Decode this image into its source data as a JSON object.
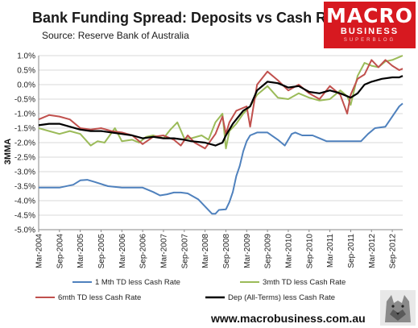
{
  "header": {
    "title": "Bank Funding Spread: Deposits vs Cash Rate",
    "subtitle": "Source: Reserve Bank of Australia"
  },
  "brand": {
    "logo_main": "MACRO",
    "logo_sub": "BUSINESS",
    "logo_sub2": "SUPERBLOG",
    "website": "www.macrobusiness.com.au",
    "logo_color": "#d71920",
    "emblem": "wolf-emblem"
  },
  "chart_data": {
    "type": "line",
    "ylabel": "3MMA",
    "ylim": [
      -5.0,
      1.0
    ],
    "yticks": [
      "1.0%",
      "0.5%",
      "0.0%",
      "-0.5%",
      "-1.0%",
      "-1.5%",
      "-2.0%",
      "-2.5%",
      "-3.0%",
      "-3.5%",
      "-4.0%",
      "-4.5%",
      "-5.0%"
    ],
    "xticks": [
      "Mar-2004",
      "Sep-2004",
      "Mar-2005",
      "Sep-2005",
      "Mar-2006",
      "Sep-2006",
      "Mar-2007",
      "Sep-2007",
      "Mar-2008",
      "Sep-2008",
      "Mar-2009",
      "Sep-2009",
      "Mar-2010",
      "Sep-2010",
      "Mar-2011",
      "Sep-2011",
      "Mar-2012",
      "Sep-2012"
    ],
    "xrange": [
      "2004-03",
      "2012-12"
    ],
    "grid": true,
    "legend": "bottom",
    "series": [
      {
        "name": "1 Mth TD less Cash Rate",
        "color": "#4f81bd",
        "points": [
          [
            "2004-03",
            -3.55
          ],
          [
            "2004-09",
            -3.55
          ],
          [
            "2005-01",
            -3.45
          ],
          [
            "2005-03",
            -3.3
          ],
          [
            "2005-05",
            -3.28
          ],
          [
            "2005-07",
            -3.35
          ],
          [
            "2005-11",
            -3.5
          ],
          [
            "2006-03",
            -3.55
          ],
          [
            "2006-09",
            -3.55
          ],
          [
            "2006-12",
            -3.7
          ],
          [
            "2007-02",
            -3.82
          ],
          [
            "2007-04",
            -3.78
          ],
          [
            "2007-06",
            -3.72
          ],
          [
            "2007-08",
            -3.72
          ],
          [
            "2007-10",
            -3.75
          ],
          [
            "2008-01",
            -3.95
          ],
          [
            "2008-03",
            -4.2
          ],
          [
            "2008-05",
            -4.45
          ],
          [
            "2008-06",
            -4.45
          ],
          [
            "2008-07",
            -4.32
          ],
          [
            "2008-09",
            -4.3
          ],
          [
            "2008-10",
            -4.05
          ],
          [
            "2008-11",
            -3.7
          ],
          [
            "2008-12",
            -3.15
          ],
          [
            "2009-01",
            -2.8
          ],
          [
            "2009-02",
            -2.3
          ],
          [
            "2009-03",
            -1.95
          ],
          [
            "2009-04",
            -1.75
          ],
          [
            "2009-06",
            -1.65
          ],
          [
            "2009-09",
            -1.65
          ],
          [
            "2009-12",
            -1.9
          ],
          [
            "2010-02",
            -2.1
          ],
          [
            "2010-04",
            -1.7
          ],
          [
            "2010-05",
            -1.65
          ],
          [
            "2010-07",
            -1.75
          ],
          [
            "2010-10",
            -1.75
          ],
          [
            "2010-12",
            -1.85
          ],
          [
            "2011-02",
            -1.95
          ],
          [
            "2011-06",
            -1.95
          ],
          [
            "2011-10",
            -1.95
          ],
          [
            "2011-12",
            -1.95
          ],
          [
            "2012-02",
            -1.7
          ],
          [
            "2012-04",
            -1.5
          ],
          [
            "2012-07",
            -1.45
          ],
          [
            "2012-09",
            -1.1
          ],
          [
            "2012-11",
            -0.75
          ],
          [
            "2012-12",
            -0.65
          ]
        ]
      },
      {
        "name": "3mth TD less Cash Rate",
        "color": "#9bbb59",
        "points": [
          [
            "2004-03",
            -1.5
          ],
          [
            "2004-06",
            -1.6
          ],
          [
            "2004-09",
            -1.7
          ],
          [
            "2004-12",
            -1.6
          ],
          [
            "2005-03",
            -1.7
          ],
          [
            "2005-06",
            -2.1
          ],
          [
            "2005-08",
            -1.95
          ],
          [
            "2005-10",
            -2.0
          ],
          [
            "2006-01",
            -1.5
          ],
          [
            "2006-03",
            -1.95
          ],
          [
            "2006-06",
            -1.9
          ],
          [
            "2006-08",
            -2.0
          ],
          [
            "2006-10",
            -1.8
          ],
          [
            "2006-12",
            -1.75
          ],
          [
            "2007-03",
            -1.85
          ],
          [
            "2007-05",
            -1.55
          ],
          [
            "2007-07",
            -1.3
          ],
          [
            "2007-09",
            -1.85
          ],
          [
            "2007-11",
            -1.85
          ],
          [
            "2008-02",
            -1.75
          ],
          [
            "2008-04",
            -1.9
          ],
          [
            "2008-06",
            -1.3
          ],
          [
            "2008-08",
            -1.0
          ],
          [
            "2008-09",
            -2.2
          ],
          [
            "2008-10",
            -1.6
          ],
          [
            "2008-12",
            -1.35
          ],
          [
            "2009-02",
            -1.0
          ],
          [
            "2009-04",
            -0.75
          ],
          [
            "2009-06",
            -0.35
          ],
          [
            "2009-09",
            -0.05
          ],
          [
            "2009-12",
            -0.45
          ],
          [
            "2010-03",
            -0.5
          ],
          [
            "2010-06",
            -0.3
          ],
          [
            "2010-09",
            -0.45
          ],
          [
            "2010-12",
            -0.55
          ],
          [
            "2011-03",
            -0.5
          ],
          [
            "2011-06",
            -0.2
          ],
          [
            "2011-08",
            -0.4
          ],
          [
            "2011-09",
            -0.7
          ],
          [
            "2011-11",
            0.3
          ],
          [
            "2012-01",
            0.75
          ],
          [
            "2012-03",
            0.65
          ],
          [
            "2012-05",
            0.6
          ],
          [
            "2012-07",
            0.8
          ],
          [
            "2012-09",
            0.85
          ],
          [
            "2012-11",
            0.95
          ],
          [
            "2012-12",
            1.0
          ]
        ]
      },
      {
        "name": "6mth TD less Cash Rate",
        "color": "#c0504d",
        "points": [
          [
            "2004-03",
            -1.2
          ],
          [
            "2004-06",
            -1.05
          ],
          [
            "2004-09",
            -1.1
          ],
          [
            "2004-12",
            -1.2
          ],
          [
            "2005-03",
            -1.5
          ],
          [
            "2005-06",
            -1.55
          ],
          [
            "2005-09",
            -1.5
          ],
          [
            "2005-12",
            -1.6
          ],
          [
            "2006-03",
            -1.65
          ],
          [
            "2006-06",
            -1.75
          ],
          [
            "2006-09",
            -2.05
          ],
          [
            "2006-12",
            -1.8
          ],
          [
            "2007-03",
            -1.75
          ],
          [
            "2007-06",
            -1.9
          ],
          [
            "2007-08",
            -2.1
          ],
          [
            "2007-10",
            -1.75
          ],
          [
            "2007-12",
            -2.0
          ],
          [
            "2008-03",
            -2.2
          ],
          [
            "2008-06",
            -1.7
          ],
          [
            "2008-08",
            -1.1
          ],
          [
            "2008-09",
            -1.7
          ],
          [
            "2008-10",
            -1.3
          ],
          [
            "2008-12",
            -0.9
          ],
          [
            "2009-03",
            -0.75
          ],
          [
            "2009-04",
            -1.45
          ],
          [
            "2009-06",
            0.0
          ],
          [
            "2009-09",
            0.45
          ],
          [
            "2009-12",
            0.15
          ],
          [
            "2010-03",
            -0.2
          ],
          [
            "2010-06",
            0.0
          ],
          [
            "2010-09",
            -0.3
          ],
          [
            "2010-12",
            -0.5
          ],
          [
            "2011-03",
            -0.05
          ],
          [
            "2011-06",
            -0.35
          ],
          [
            "2011-08",
            -1.0
          ],
          [
            "2011-09",
            -0.35
          ],
          [
            "2011-11",
            0.2
          ],
          [
            "2012-01",
            0.35
          ],
          [
            "2012-03",
            0.85
          ],
          [
            "2012-05",
            0.6
          ],
          [
            "2012-07",
            0.85
          ],
          [
            "2012-09",
            0.65
          ],
          [
            "2012-11",
            0.5
          ],
          [
            "2012-12",
            0.55
          ]
        ]
      },
      {
        "name": "Dep (All-Terms) less Cash Rate",
        "color": "#000000",
        "points": [
          [
            "2004-03",
            -1.4
          ],
          [
            "2004-06",
            -1.35
          ],
          [
            "2004-09",
            -1.35
          ],
          [
            "2004-12",
            -1.45
          ],
          [
            "2005-03",
            -1.55
          ],
          [
            "2005-06",
            -1.6
          ],
          [
            "2005-09",
            -1.6
          ],
          [
            "2005-12",
            -1.65
          ],
          [
            "2006-03",
            -1.7
          ],
          [
            "2006-06",
            -1.75
          ],
          [
            "2006-09",
            -1.85
          ],
          [
            "2006-12",
            -1.8
          ],
          [
            "2007-03",
            -1.85
          ],
          [
            "2007-06",
            -1.85
          ],
          [
            "2007-09",
            -1.9
          ],
          [
            "2007-11",
            -1.95
          ],
          [
            "2008-03",
            -2.0
          ],
          [
            "2008-06",
            -2.1
          ],
          [
            "2008-08",
            -2.0
          ],
          [
            "2008-09",
            -1.75
          ],
          [
            "2008-11",
            -1.35
          ],
          [
            "2009-02",
            -0.9
          ],
          [
            "2009-04",
            -0.75
          ],
          [
            "2009-06",
            -0.2
          ],
          [
            "2009-09",
            0.1
          ],
          [
            "2009-12",
            0.05
          ],
          [
            "2010-03",
            -0.1
          ],
          [
            "2010-06",
            -0.05
          ],
          [
            "2010-09",
            -0.25
          ],
          [
            "2010-12",
            -0.3
          ],
          [
            "2011-03",
            -0.2
          ],
          [
            "2011-06",
            -0.3
          ],
          [
            "2011-09",
            -0.45
          ],
          [
            "2011-11",
            -0.3
          ],
          [
            "2012-01",
            0.0
          ],
          [
            "2012-03",
            0.1
          ],
          [
            "2012-06",
            0.2
          ],
          [
            "2012-09",
            0.25
          ],
          [
            "2012-11",
            0.25
          ],
          [
            "2012-12",
            0.3
          ]
        ]
      }
    ]
  }
}
